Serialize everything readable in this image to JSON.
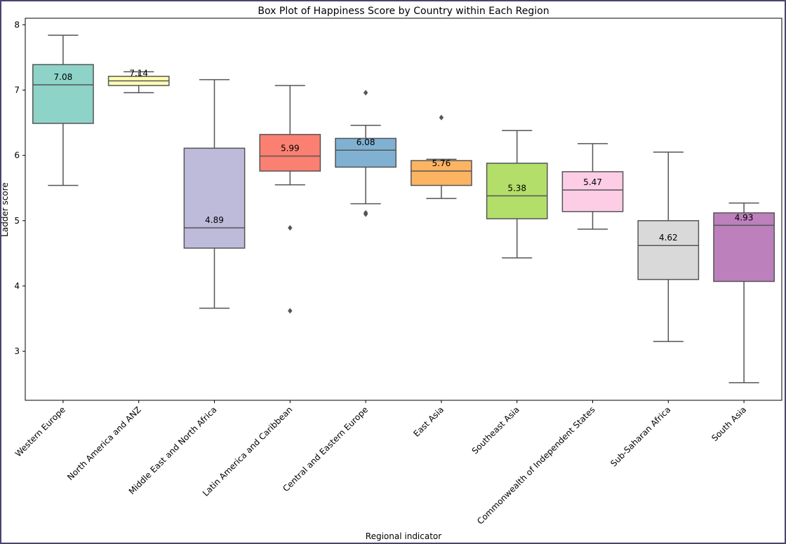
{
  "chart_data": {
    "type": "box",
    "title": "Box Plot of Happiness Score by Country within Each Region",
    "xlabel": "Regional indicator",
    "ylabel": "Ladder score",
    "ylim": [
      2.25,
      8.1
    ],
    "yticks": [
      3,
      4,
      5,
      6,
      7,
      8
    ],
    "grid": false,
    "categories": [
      "Western Europe",
      "North America and ANZ",
      "Middle East and North Africa",
      "Latin America and Caribbean",
      "Central and Eastern Europe",
      "East Asia",
      "Southeast Asia",
      "Commonwealth of Independent States",
      "Sub-Saharan Africa",
      "South Asia"
    ],
    "boxes": [
      {
        "min": 5.54,
        "q1": 6.49,
        "median": 7.08,
        "q3": 7.39,
        "max": 7.84,
        "outliers": [],
        "color": "#8dd3c7",
        "label": "7.08"
      },
      {
        "min": 6.96,
        "q1": 7.07,
        "median": 7.14,
        "q3": 7.21,
        "max": 7.28,
        "outliers": [],
        "color": "#ffffb3",
        "label": "7.14"
      },
      {
        "min": 3.66,
        "q1": 4.58,
        "median": 4.89,
        "q3": 6.11,
        "max": 7.16,
        "outliers": [],
        "color": "#bebada",
        "label": "4.89"
      },
      {
        "min": 5.55,
        "q1": 5.76,
        "median": 5.99,
        "q3": 6.32,
        "max": 7.07,
        "outliers": [
          4.89,
          3.62
        ],
        "color": "#fb8072",
        "label": "5.99"
      },
      {
        "min": 5.26,
        "q1": 5.82,
        "median": 6.08,
        "q3": 6.26,
        "max": 6.46,
        "outliers": [
          6.96,
          5.12,
          5.1
        ],
        "color": "#80b1d3",
        "label": "6.08"
      },
      {
        "min": 5.34,
        "q1": 5.54,
        "median": 5.76,
        "q3": 5.92,
        "max": 5.94,
        "outliers": [
          6.58
        ],
        "color": "#fdb462",
        "label": "5.76"
      },
      {
        "min": 4.43,
        "q1": 5.03,
        "median": 5.38,
        "q3": 5.88,
        "max": 6.38,
        "outliers": [],
        "color": "#b3de69",
        "label": "5.38"
      },
      {
        "min": 4.87,
        "q1": 5.14,
        "median": 5.47,
        "q3": 5.75,
        "max": 6.18,
        "outliers": [],
        "color": "#fccde5",
        "label": "5.47"
      },
      {
        "min": 3.15,
        "q1": 4.1,
        "median": 4.62,
        "q3": 5.0,
        "max": 6.05,
        "outliers": [],
        "color": "#d9d9d9",
        "label": "4.62"
      },
      {
        "min": 2.52,
        "q1": 4.07,
        "median": 4.93,
        "q3": 5.12,
        "max": 5.27,
        "outliers": [],
        "color": "#bc80bd",
        "label": "4.93"
      }
    ]
  }
}
